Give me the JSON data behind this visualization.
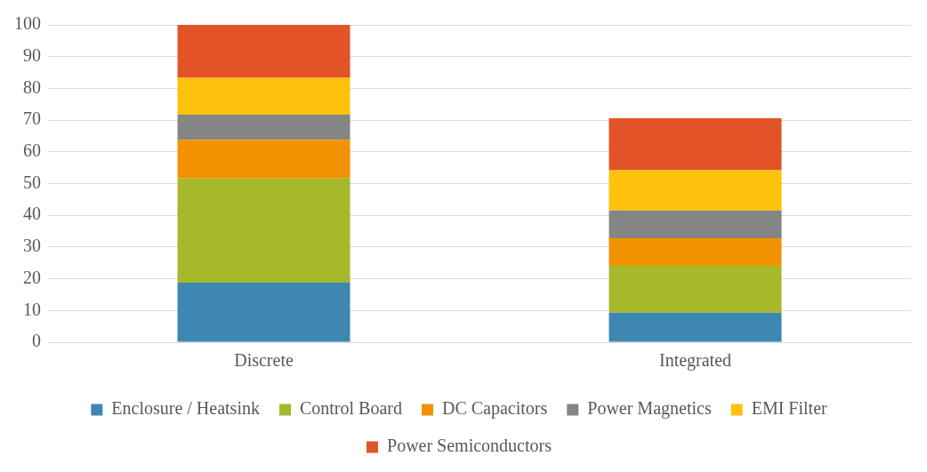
{
  "chart_data": {
    "type": "bar",
    "stacked": true,
    "categories": [
      "Discrete",
      "Integrated"
    ],
    "series": [
      {
        "name": "Enclosure / Heatsink",
        "color": "#3f87b3",
        "values": [
          18.8,
          9.3
        ]
      },
      {
        "name": "Control Board",
        "color": "#a5b92a",
        "values": [
          32.8,
          14.8
        ]
      },
      {
        "name": "DC Capacitors",
        "color": "#f39200",
        "values": [
          12.2,
          8.7
        ]
      },
      {
        "name": "Power Magnetics",
        "color": "#858585",
        "values": [
          7.9,
          8.7
        ]
      },
      {
        "name": "EMI Filter",
        "color": "#fec10c",
        "values": [
          11.6,
          12.7
        ]
      },
      {
        "name": "Power Semiconductors",
        "color": "#e25427",
        "values": [
          16.7,
          16.4
        ]
      }
    ],
    "ylim": [
      0,
      100
    ],
    "yticks": [
      0,
      10,
      20,
      30,
      40,
      50,
      60,
      70,
      80,
      90,
      100
    ],
    "grid": "y",
    "legend": "bottom"
  }
}
